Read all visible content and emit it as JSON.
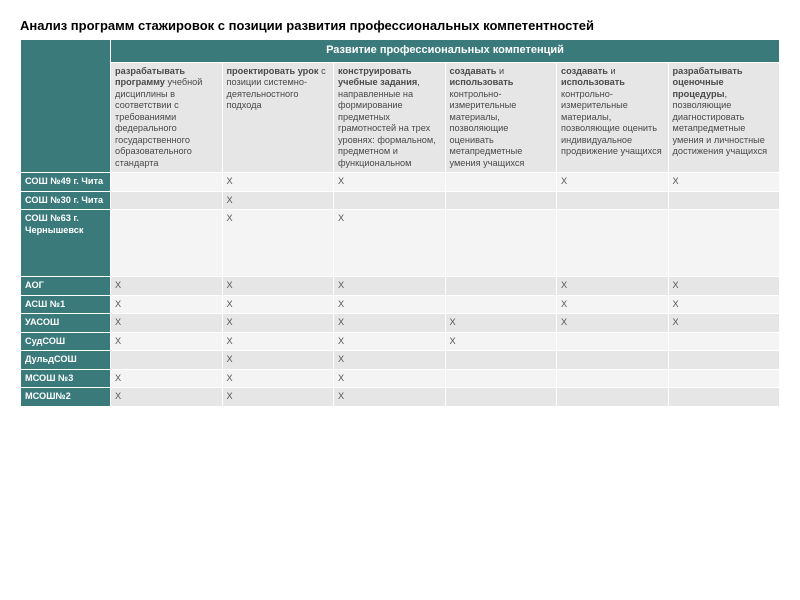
{
  "title": "Анализ программ стажировок с позиции развития профессиональных компетентностей",
  "mergedHeader": "Развитие профессиональных компетенций",
  "columns": [
    {
      "bold": "разрабатывать программу",
      "rest": " учебной дисциплины в соответствии с требованиями федерального государственного образовательного стандарта"
    },
    {
      "bold": "проектировать урок",
      "rest": " с позиции системно-деятельностного подхода"
    },
    {
      "bold": "конструировать учебные задания",
      "rest": ", направленные на формирование предметных грамотностей на трех уровнях: формальном, предметном и функциональном"
    },
    {
      "bold": "создавать",
      "mid": " и ",
      "bold2": "использовать",
      "rest": " контрольно-измерительные материалы, позволяющие оценивать метапредметные умения учащихся"
    },
    {
      "bold": "создавать",
      "mid": " и ",
      "bold2": "использовать",
      "rest": " контрольно-измерительные материалы, позволяющие оценить индивидуальное продвижение учащихся"
    },
    {
      "bold": "разрабатывать оценочные процедуры",
      "rest": ", позволяющие диагностировать метапредметные умения и личностные достижения учащихся"
    }
  ],
  "rows": [
    {
      "label": "СОШ №49 г. Чита",
      "cells": [
        "",
        "X",
        "X",
        "",
        "X",
        "X"
      ]
    },
    {
      "label": "СОШ №30 г. Чита",
      "cells": [
        "",
        "X",
        "",
        "",
        "",
        ""
      ]
    },
    {
      "label": "СОШ №63 г. Чернышевск",
      "cells": [
        "",
        "X",
        "X",
        "",
        "",
        ""
      ],
      "tall": true
    },
    {
      "label": "АОГ",
      "cells": [
        "X",
        "X",
        "X",
        "",
        "X",
        "X"
      ]
    },
    {
      "label": "АСШ №1",
      "cells": [
        "X",
        "X",
        "X",
        "",
        "X",
        "X"
      ]
    },
    {
      "label": "УАСОШ",
      "cells": [
        "X",
        "X",
        "X",
        "X",
        "X",
        "X"
      ]
    },
    {
      "label": "СудСОШ",
      "cells": [
        " X",
        "X",
        "X",
        "X",
        "",
        ""
      ]
    },
    {
      "label": "ДульдСОШ",
      "cells": [
        "",
        "X",
        "X",
        "",
        "",
        ""
      ]
    },
    {
      "label": "МСОШ №3",
      "cells": [
        "X",
        "X",
        "X",
        "",
        "",
        ""
      ]
    },
    {
      "label": "МСОШ№2",
      "cells": [
        "X",
        "X",
        "X",
        "",
        "",
        ""
      ]
    }
  ]
}
